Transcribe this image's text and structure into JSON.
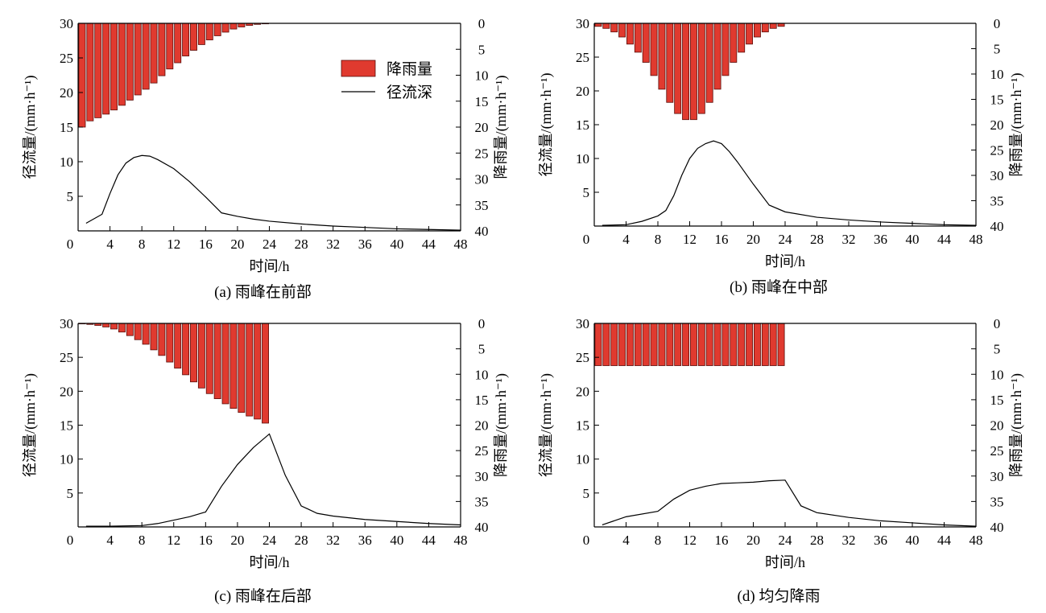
{
  "legend": {
    "rain_label": "降雨量",
    "runoff_label": "径流深"
  },
  "colors": {
    "bar_fill": "#e03a2f",
    "bar_stroke": "#5a0d0a",
    "line": "#000000"
  },
  "chart_data": [
    {
      "type": "bar+line",
      "caption": "(a) 雨峰在前部",
      "xlabel": "时间/h",
      "ylabel": "径流量/(mm·h⁻¹)",
      "y2label": "降雨量/(mm·h⁻¹)",
      "xlim": [
        0,
        48
      ],
      "ylim": [
        0,
        30
      ],
      "y2lim": [
        0,
        40
      ],
      "xticks": [
        0,
        4,
        8,
        12,
        16,
        20,
        24,
        28,
        32,
        36,
        40,
        44,
        48
      ],
      "yticks": [
        5,
        10,
        15,
        20,
        25,
        30
      ],
      "y2ticks": [
        0,
        5,
        10,
        15,
        20,
        25,
        30,
        35,
        40
      ],
      "rain_hours": [
        1,
        2,
        3,
        4,
        5,
        6,
        7,
        8,
        9,
        10,
        11,
        12,
        13,
        14,
        15,
        16,
        17,
        18,
        19,
        20,
        21,
        22,
        23,
        24
      ],
      "rain_values": [
        20,
        18.8,
        18.2,
        17.5,
        16.7,
        15.8,
        14.8,
        13.8,
        12.7,
        11.5,
        10.1,
        8.8,
        7.6,
        6.3,
        5.2,
        4.1,
        3.2,
        2.4,
        1.7,
        1.1,
        0.7,
        0.4,
        0.2,
        0.1
      ],
      "runoff_x": [
        1,
        3,
        4,
        5,
        6,
        7,
        8,
        9,
        10,
        12,
        14,
        16,
        18,
        20,
        22,
        24,
        28,
        32,
        36,
        40,
        44,
        48
      ],
      "runoff_y": [
        1.1,
        2.4,
        5.4,
        8.1,
        9.8,
        10.6,
        10.9,
        10.8,
        10.3,
        9.0,
        7.1,
        4.9,
        2.6,
        2.1,
        1.7,
        1.4,
        1.0,
        0.7,
        0.5,
        0.3,
        0.2,
        0.1
      ]
    },
    {
      "type": "bar+line",
      "caption": "(b) 雨峰在中部",
      "xlabel": "时间/h",
      "ylabel": "径流量/(mm·h⁻¹)",
      "y2label": "降雨量/(mm·h⁻¹)",
      "xlim": [
        0,
        48
      ],
      "ylim": [
        0,
        30
      ],
      "y2lim": [
        0,
        40
      ],
      "xticks": [
        0,
        4,
        8,
        12,
        16,
        20,
        24,
        28,
        32,
        36,
        40,
        44,
        48
      ],
      "yticks": [
        5,
        10,
        15,
        20,
        25,
        30
      ],
      "y2ticks": [
        0,
        5,
        10,
        15,
        20,
        25,
        30,
        35,
        40
      ],
      "rain_hours": [
        1,
        2,
        3,
        4,
        5,
        6,
        7,
        8,
        9,
        10,
        11,
        12,
        13,
        14,
        15,
        16,
        17,
        18,
        19,
        20,
        21,
        22,
        23,
        24
      ],
      "rain_values": [
        0.6,
        1.0,
        1.7,
        2.7,
        4.1,
        5.7,
        7.7,
        10.3,
        13.0,
        15.6,
        17.8,
        19.0,
        19.0,
        17.8,
        15.6,
        13.0,
        10.3,
        7.7,
        5.7,
        4.1,
        2.7,
        1.7,
        1.0,
        0.6
      ],
      "runoff_x": [
        1,
        4,
        6,
        8,
        9,
        10,
        11,
        12,
        13,
        14,
        15,
        16,
        17,
        18,
        20,
        22,
        24,
        28,
        32,
        36,
        40,
        44,
        48
      ],
      "runoff_y": [
        0.1,
        0.2,
        0.7,
        1.5,
        2.3,
        4.5,
        7.5,
        10.0,
        11.5,
        12.2,
        12.6,
        12.2,
        11.0,
        9.5,
        6.2,
        3.1,
        2.1,
        1.3,
        0.9,
        0.6,
        0.4,
        0.2,
        0.1
      ]
    },
    {
      "type": "bar+line",
      "caption": "(c) 雨峰在后部",
      "xlabel": "时间/h",
      "ylabel": "径流量/(mm·h⁻¹)",
      "y2label": "降雨量/(mm·h⁻¹)",
      "xlim": [
        0,
        48
      ],
      "ylim": [
        0,
        30
      ],
      "y2lim": [
        0,
        40
      ],
      "xticks": [
        0,
        4,
        8,
        12,
        16,
        20,
        24,
        28,
        32,
        36,
        40,
        44,
        48
      ],
      "yticks": [
        5,
        10,
        15,
        20,
        25,
        30
      ],
      "y2ticks": [
        0,
        5,
        10,
        15,
        20,
        25,
        30,
        35,
        40
      ],
      "rain_hours": [
        1,
        2,
        3,
        4,
        5,
        6,
        7,
        8,
        9,
        10,
        11,
        12,
        13,
        14,
        15,
        16,
        17,
        18,
        19,
        20,
        21,
        22,
        23,
        24
      ],
      "rain_values": [
        0.1,
        0.2,
        0.4,
        0.7,
        1.1,
        1.7,
        2.4,
        3.2,
        4.1,
        5.2,
        6.3,
        7.6,
        8.8,
        10.1,
        11.5,
        12.7,
        13.8,
        14.8,
        15.8,
        16.7,
        17.5,
        18.2,
        18.8,
        19.6
      ],
      "runoff_x": [
        1,
        4,
        8,
        10,
        12,
        14,
        16,
        18,
        20,
        22,
        24,
        26,
        28,
        30,
        32,
        36,
        40,
        44,
        48
      ],
      "runoff_y": [
        0.1,
        0.1,
        0.2,
        0.5,
        1.0,
        1.5,
        2.2,
        6.0,
        9.2,
        11.7,
        13.7,
        7.6,
        3.1,
        2.0,
        1.6,
        1.1,
        0.8,
        0.5,
        0.3
      ]
    },
    {
      "type": "bar+line",
      "caption": "(d) 均匀降雨",
      "xlabel": "时间/h",
      "ylabel": "径流量/(mm·h⁻¹)",
      "y2label": "降雨量/(mm·h⁻¹)",
      "xlim": [
        0,
        48
      ],
      "ylim": [
        0,
        30
      ],
      "y2lim": [
        0,
        40
      ],
      "xticks": [
        4,
        8,
        12,
        16,
        20,
        24,
        28,
        32,
        36,
        40,
        44,
        48
      ],
      "yticks": [
        5,
        10,
        15,
        20,
        25,
        30
      ],
      "y2ticks": [
        0,
        5,
        10,
        15,
        20,
        25,
        30,
        35,
        40
      ],
      "rain_hours": [
        1,
        2,
        3,
        4,
        5,
        6,
        7,
        8,
        9,
        10,
        11,
        12,
        13,
        14,
        15,
        16,
        17,
        18,
        19,
        20,
        21,
        22,
        23,
        24
      ],
      "rain_values": [
        8.3,
        8.3,
        8.3,
        8.3,
        8.3,
        8.3,
        8.3,
        8.3,
        8.3,
        8.3,
        8.3,
        8.3,
        8.3,
        8.3,
        8.3,
        8.3,
        8.3,
        8.3,
        8.3,
        8.3,
        8.3,
        8.3,
        8.3,
        8.3
      ],
      "runoff_x": [
        1,
        4,
        8,
        10,
        12,
        14,
        16,
        18,
        20,
        22,
        24,
        26,
        28,
        32,
        36,
        40,
        44,
        48
      ],
      "runoff_y": [
        0.3,
        1.5,
        2.3,
        4.1,
        5.4,
        6.0,
        6.4,
        6.5,
        6.6,
        6.8,
        6.9,
        3.1,
        2.1,
        1.4,
        0.9,
        0.6,
        0.3,
        0.1
      ]
    }
  ]
}
